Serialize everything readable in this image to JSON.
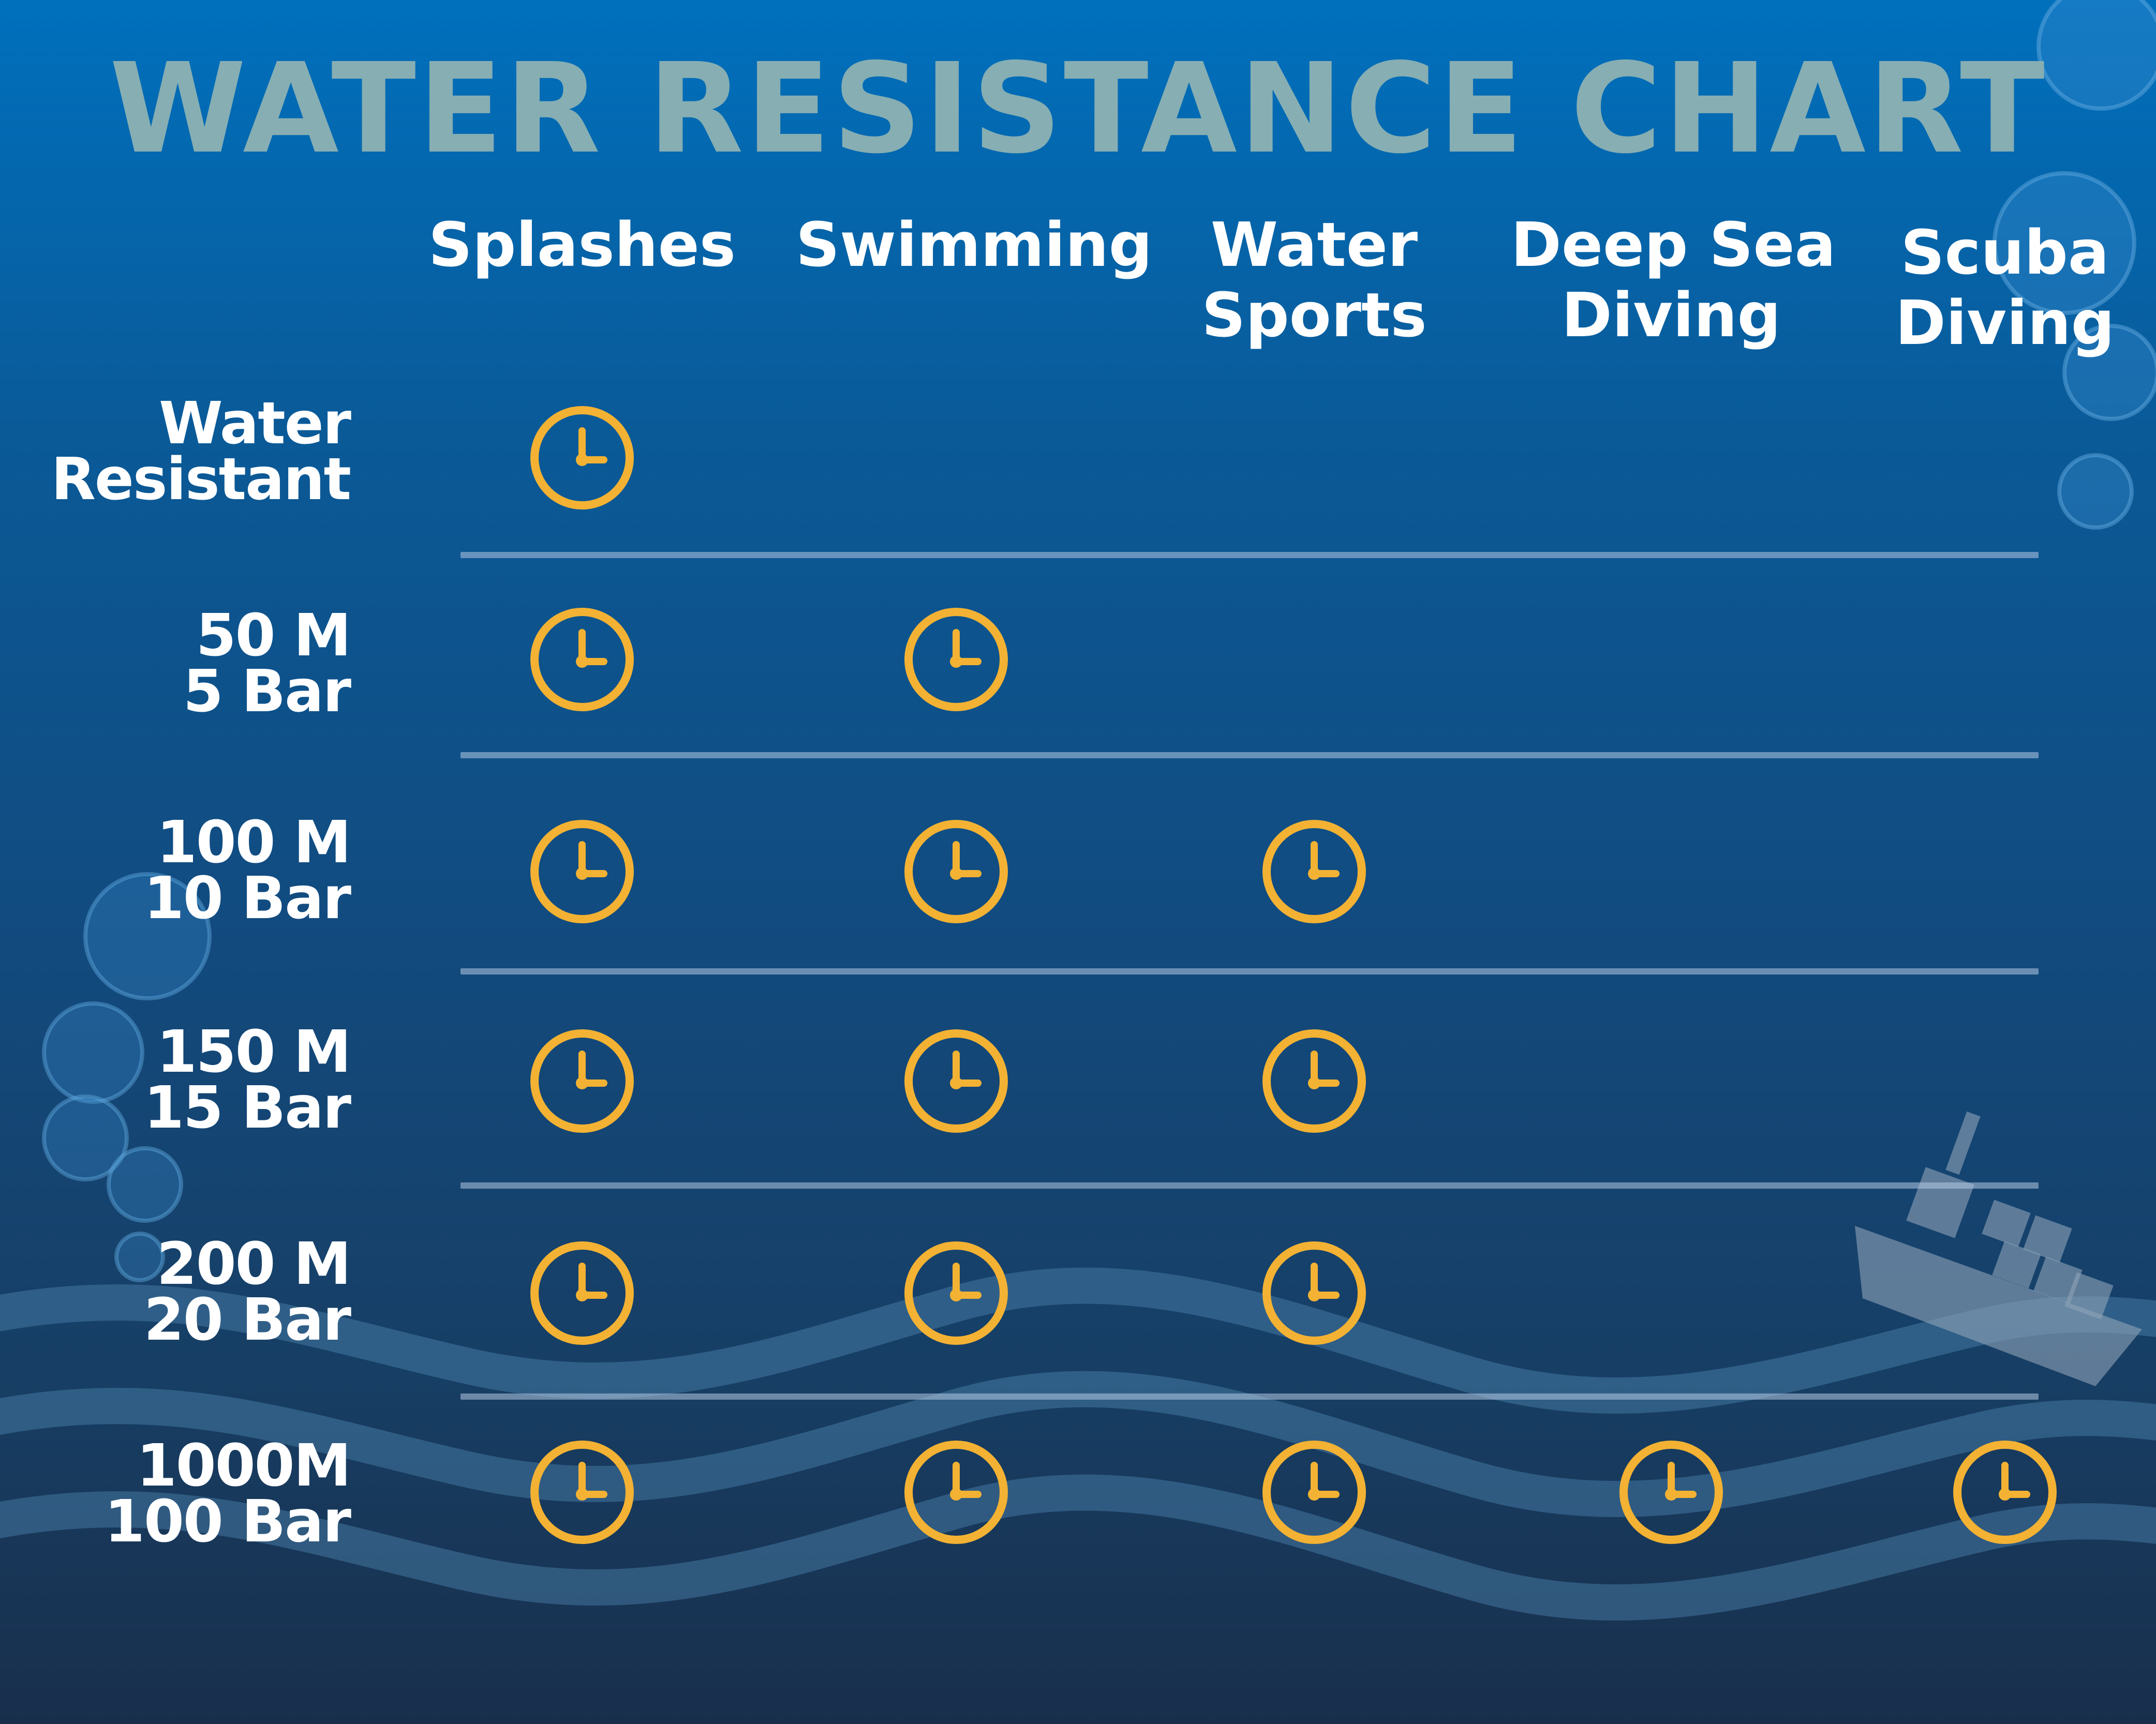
{
  "title": "WATER RESISTANCE CHART",
  "columns": [
    {
      "lines": [
        "Splashes"
      ]
    },
    {
      "lines": [
        "Swimming"
      ]
    },
    {
      "lines": [
        "Water",
        "Sports"
      ]
    },
    {
      "lines": [
        "Deep Sea",
        "Diving"
      ]
    },
    {
      "lines": [
        "Scuba",
        "Diving"
      ]
    }
  ],
  "rows": [
    {
      "lines": [
        "Water",
        "Resistant"
      ],
      "suitable": [
        true,
        false,
        false,
        false,
        false
      ]
    },
    {
      "lines": [
        "50 M",
        "5 Bar"
      ],
      "suitable": [
        true,
        true,
        false,
        false,
        false
      ]
    },
    {
      "lines": [
        "100 M",
        "10 Bar"
      ],
      "suitable": [
        true,
        true,
        true,
        false,
        false
      ]
    },
    {
      "lines": [
        "150 M",
        "15 Bar"
      ],
      "suitable": [
        true,
        true,
        true,
        false,
        false
      ]
    },
    {
      "lines": [
        "200 M",
        "20 Bar"
      ],
      "suitable": [
        true,
        true,
        true,
        false,
        false
      ]
    },
    {
      "lines": [
        "1000M",
        "100 Bar"
      ],
      "suitable": [
        true,
        true,
        true,
        true,
        true
      ]
    }
  ],
  "icons": {
    "check_mark": "clock-icon",
    "decor": [
      "bubble-icon",
      "wave-icon",
      "ship-icon"
    ]
  },
  "colors": {
    "title": "#86aeb3",
    "clock": "#f3b233",
    "text": "#ffffff",
    "bg_top": "#0070bd",
    "bg_bottom": "#182f4c"
  }
}
